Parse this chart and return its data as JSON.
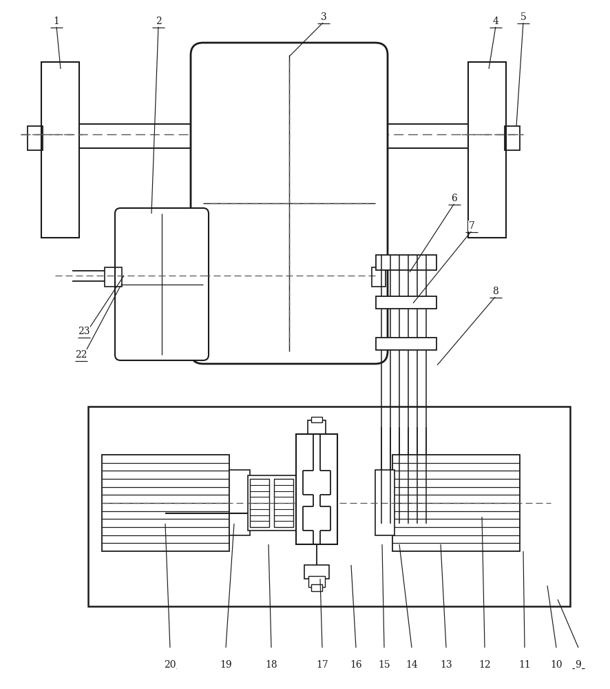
{
  "bg_color": "#ffffff",
  "lc": "#1a1a1a",
  "dc": "#555555",
  "fig_width": 8.86,
  "fig_height": 10.0,
  "dpi": 100
}
